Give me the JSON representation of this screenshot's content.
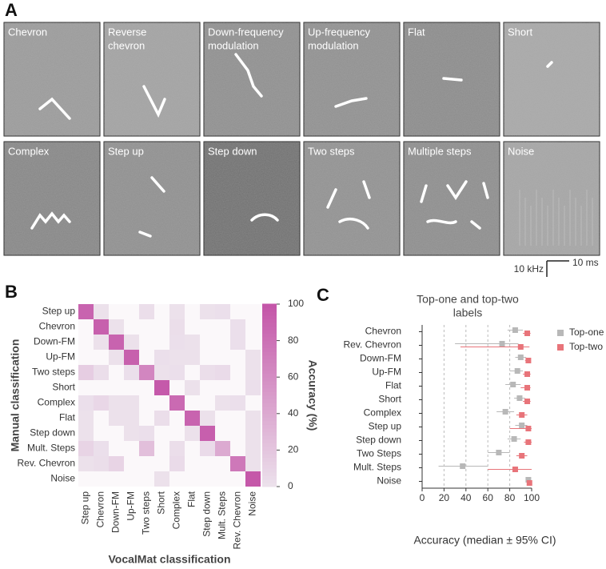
{
  "panels": {
    "a": {
      "letter": "A",
      "tiles": [
        [
          "Chevron"
        ],
        [
          "Reverse",
          "chevron"
        ],
        [
          "Down-frequency",
          "modulation"
        ],
        [
          "Up-frequency",
          "modulation"
        ],
        [
          "Flat"
        ],
        [
          "Short"
        ],
        [
          "Complex"
        ],
        [
          "Step up"
        ],
        [
          "Step down"
        ],
        [
          "Two steps"
        ],
        [
          "Multiple steps"
        ],
        [
          "Noise"
        ]
      ],
      "scale_y": "10 kHz",
      "scale_x": "10 ms"
    },
    "b": {
      "letter": "B"
    },
    "c": {
      "letter": "C"
    }
  },
  "chart_data": [
    {
      "type": "heatmap",
      "ylabel": "Manual classification",
      "xlabel": "VocalMat classification",
      "colorbar_label": "Accuracy (%)",
      "rows": [
        "Step up",
        "Chevron",
        "Down-FM",
        "Up-FM",
        "Two steps",
        "Short",
        "Complex",
        "Flat",
        "Step down",
        "Mult. Steps",
        "Rev. Chevron",
        "Noise"
      ],
      "columns": [
        "Step up",
        "Chevron",
        "Down-FM",
        "Up-FM",
        "Two steps",
        "Short",
        "Complex",
        "Flat",
        "Step down",
        "Mult. Steps",
        "Rev. Chevron",
        "Noise"
      ],
      "values": [
        [
          90,
          1,
          0,
          0,
          3,
          0,
          1,
          0,
          1,
          2,
          0,
          0
        ],
        [
          0,
          92,
          1,
          0,
          0,
          0,
          3,
          0,
          0,
          0,
          2,
          0
        ],
        [
          0,
          1,
          90,
          1,
          0,
          0,
          2,
          1,
          0,
          0,
          2,
          0
        ],
        [
          0,
          0,
          1,
          92,
          0,
          2,
          1,
          1,
          0,
          0,
          0,
          1
        ],
        [
          15,
          3,
          0,
          2,
          65,
          1,
          2,
          0,
          3,
          5,
          0,
          1
        ],
        [
          0,
          0,
          0,
          0,
          0,
          97,
          0,
          1,
          0,
          0,
          0,
          2
        ],
        [
          2,
          8,
          1,
          1,
          0,
          0,
          85,
          0,
          0,
          1,
          2,
          0
        ],
        [
          1,
          0,
          1,
          1,
          0,
          3,
          0,
          90,
          1,
          0,
          0,
          1
        ],
        [
          1,
          0,
          0,
          1,
          2,
          0,
          0,
          1,
          93,
          0,
          0,
          1
        ],
        [
          10,
          2,
          0,
          0,
          25,
          0,
          3,
          0,
          5,
          40,
          0,
          1
        ],
        [
          1,
          3,
          10,
          0,
          0,
          0,
          5,
          0,
          0,
          0,
          75,
          1
        ],
        [
          0,
          0,
          0,
          0,
          0,
          1,
          0,
          0,
          0,
          0,
          0,
          98
        ]
      ],
      "colors": [
        "#ece2ec",
        "#c455a8"
      ],
      "clim": [
        0,
        100
      ],
      "cticks": [
        0,
        20,
        40,
        60,
        80,
        100
      ]
    },
    {
      "type": "dot-interval",
      "title": [
        "Top-one and top-two",
        "labels"
      ],
      "xlabel": "Accuracy (median ± 95% CI)",
      "categories": [
        "Chevron",
        "Rev. Chevron",
        "Down-FM",
        "Up-FM",
        "Flat",
        "Short",
        "Complex",
        "Step up",
        "Step down",
        "Two Steps",
        "Mult. Steps",
        "Noise"
      ],
      "xlim": [
        0,
        100
      ],
      "xticks": [
        0,
        20,
        40,
        60,
        80,
        100
      ],
      "grid": true,
      "legend": "upper right",
      "series": [
        {
          "name": "Top-one",
          "color": "#b8b8b8",
          "values": [
            85,
            73,
            90,
            87,
            83,
            89,
            76,
            91,
            84,
            70,
            37,
            97
          ],
          "ci_low": [
            78,
            30,
            85,
            80,
            76,
            84,
            68,
            85,
            78,
            60,
            15,
            95
          ],
          "ci_high": [
            92,
            88,
            95,
            92,
            90,
            94,
            84,
            96,
            90,
            80,
            60,
            99
          ]
        },
        {
          "name": "Top-two",
          "color": "#e8747a",
          "values": [
            96,
            90,
            97,
            96,
            96,
            96,
            91,
            97,
            97,
            91,
            85,
            98
          ],
          "ci_low": [
            92,
            35,
            94,
            92,
            90,
            92,
            86,
            80,
            93,
            86,
            60,
            96
          ],
          "ci_high": [
            99,
            98,
            99,
            99,
            99,
            99,
            96,
            100,
            100,
            96,
            100,
            100
          ]
        }
      ]
    }
  ]
}
